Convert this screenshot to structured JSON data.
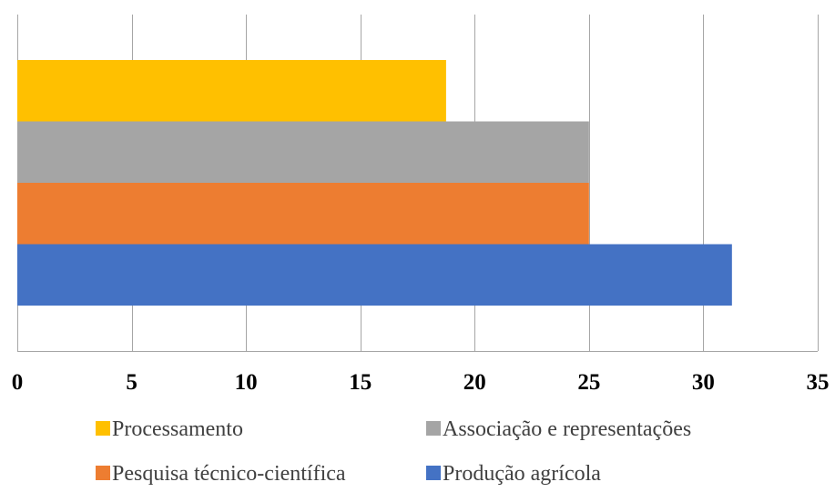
{
  "chart_data": {
    "type": "bar",
    "orientation": "horizontal",
    "xlim": [
      0,
      35
    ],
    "x_ticks": [
      "0",
      "5",
      "10",
      "15",
      "20",
      "25",
      "30",
      "35"
    ],
    "grid": "vertical",
    "legend_position": "bottom",
    "series": [
      {
        "name": "Produção agrícola",
        "value": 31.25,
        "color": "#4472C4"
      },
      {
        "name": "Pesquisa técnico-científica",
        "value": 25,
        "color": "#ED7D31"
      },
      {
        "name": "Associação e representações",
        "value": 25,
        "color": "#A5A5A5"
      },
      {
        "name": "Processamento",
        "value": 18.75,
        "color": "#FFC000"
      }
    ],
    "legend_order": [
      "Processamento",
      "Associação e representações",
      "Pesquisa técnico-científica",
      "Produção agrícola"
    ]
  }
}
